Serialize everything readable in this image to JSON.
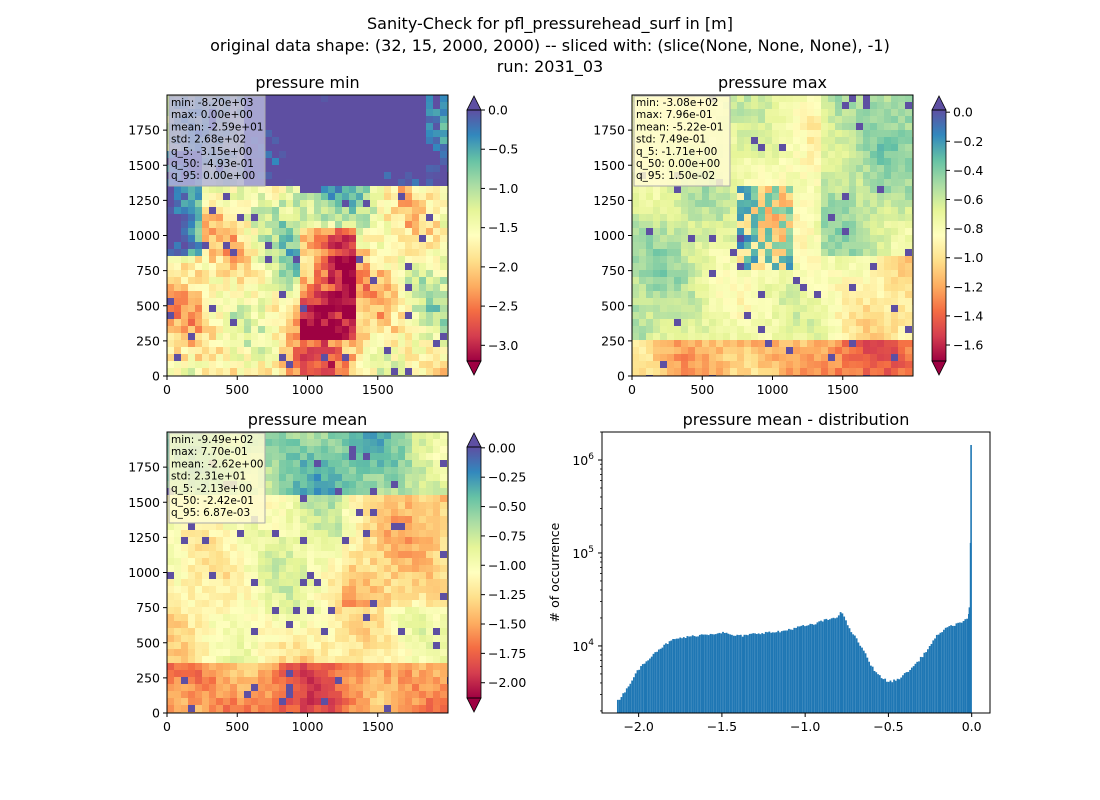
{
  "title_lines": [
    "Sanity-Check for pfl_pressurehead_surf in [m]",
    "original data shape: (32, 15, 2000, 2000) -- sliced with: (slice(None, None, None), -1)",
    "run: 2031_03"
  ],
  "colormap": "Spectral",
  "colormap_stops": [
    "#9e0142",
    "#d53e4f",
    "#f46d43",
    "#fdae61",
    "#fee08b",
    "#ffffbf",
    "#e6f598",
    "#abdda4",
    "#66c2a5",
    "#3288bd",
    "#5e4fa2"
  ],
  "hist_color": "#1f77b4",
  "chart_data": [
    {
      "type": "heatmap",
      "title": "pressure min",
      "x_ticks": [
        "0",
        "500",
        "1000",
        "1500"
      ],
      "y_ticks": [
        "0",
        "250",
        "500",
        "750",
        "1000",
        "1250",
        "1500",
        "1750"
      ],
      "xlim": [
        0,
        2000
      ],
      "ylim": [
        0,
        2000
      ],
      "colorbar": {
        "range": [
          -3.2,
          0.0
        ],
        "ticks": [
          "0.0",
          "−0.5",
          "−1.0",
          "−1.5",
          "−2.0",
          "−2.5",
          "−3.0"
        ],
        "tick_values": [
          0.0,
          -0.5,
          -1.0,
          -1.5,
          -2.0,
          -2.5,
          -3.0
        ],
        "extend": "both"
      },
      "stats": [
        "min: -8.20e+03",
        "max: 0.00e+00",
        "mean: -2.59e+01",
        "std: 2.68e+02",
        "q_5: -3.15e+00",
        "q_50: -4.93e-01",
        "q_95: 0.00e+00"
      ],
      "stats_box_color": "#b3b3d9",
      "stats_location": "top-left"
    },
    {
      "type": "heatmap",
      "title": "pressure max",
      "x_ticks": [
        "0",
        "500",
        "1000",
        "1500"
      ],
      "y_ticks": [
        "0",
        "250",
        "500",
        "750",
        "1000",
        "1250",
        "1500",
        "1750"
      ],
      "xlim": [
        0,
        2000
      ],
      "ylim": [
        0,
        2000
      ],
      "colorbar": {
        "range": [
          -1.71,
          0.015
        ],
        "ticks": [
          "0.0",
          "−0.2",
          "−0.4",
          "−0.6",
          "−0.8",
          "−1.0",
          "−1.2",
          "−1.4",
          "−1.6"
        ],
        "tick_values": [
          0.0,
          -0.2,
          -0.4,
          -0.6,
          -0.8,
          -1.0,
          -1.2,
          -1.4,
          -1.6
        ],
        "extend": "both"
      },
      "stats": [
        "min: -3.08e+02",
        "max: 7.96e-01",
        "mean: -5.22e-01",
        "std: 7.49e-01",
        "q_5: -1.71e+00",
        "q_50: 0.00e+00",
        "q_95: 1.50e-02"
      ],
      "stats_box_color": "#fffbd0",
      "stats_location": "top-left"
    },
    {
      "type": "heatmap",
      "title": "pressure mean",
      "x_ticks": [
        "0",
        "500",
        "1000",
        "1500"
      ],
      "y_ticks": [
        "0",
        "250",
        "500",
        "750",
        "1000",
        "1250",
        "1500",
        "1750"
      ],
      "xlim": [
        0,
        2000
      ],
      "ylim": [
        0,
        2000
      ],
      "colorbar": {
        "range": [
          -2.13,
          0.007
        ],
        "ticks": [
          "0.00",
          "−0.25",
          "−0.50",
          "−0.75",
          "−1.00",
          "−1.25",
          "−1.50",
          "−1.75",
          "−2.00"
        ],
        "tick_values": [
          0.0,
          -0.25,
          -0.5,
          -0.75,
          -1.0,
          -1.25,
          -1.5,
          -1.75,
          -2.0
        ],
        "extend": "both"
      },
      "stats": [
        "min: -9.49e+02",
        "max: 7.70e-01",
        "mean: -2.62e+00",
        "std: 2.31e+01",
        "q_5: -2.13e+00",
        "q_50: -2.42e-01",
        "q_95: 6.87e-03"
      ],
      "stats_box_color": "#fffbd0",
      "stats_location": "top-left"
    },
    {
      "type": "bar",
      "title": "pressure mean - distribution",
      "ylabel": "# of occurrence",
      "yscale": "log",
      "xlim": [
        -2.22,
        0.11
      ],
      "ylim": [
        1900,
        2000000
      ],
      "x_ticks": [
        "−2.0",
        "−1.5",
        "−1.0",
        "−0.5",
        "0.0"
      ],
      "x_tick_values": [
        -2.0,
        -1.5,
        -1.0,
        -0.5,
        0.0
      ],
      "y_ticks": [
        {
          "value": 10000,
          "base": "10",
          "exp": "4"
        },
        {
          "value": 100000,
          "base": "10",
          "exp": "5"
        },
        {
          "value": 1000000,
          "base": "10",
          "exp": "6"
        }
      ],
      "bin_width": 0.0107,
      "bins_x": [
        -2.13,
        -2.1,
        -2.05,
        -2.0,
        -1.95,
        -1.9,
        -1.85,
        -1.8,
        -1.75,
        -1.7,
        -1.65,
        -1.6,
        -1.55,
        -1.5,
        -1.45,
        -1.4,
        -1.35,
        -1.3,
        -1.25,
        -1.2,
        -1.15,
        -1.1,
        -1.05,
        -1.0,
        -0.95,
        -0.9,
        -0.85,
        -0.8,
        -0.78,
        -0.76,
        -0.74,
        -0.72,
        -0.7,
        -0.65,
        -0.6,
        -0.55,
        -0.5,
        -0.45,
        -0.4,
        -0.35,
        -0.3,
        -0.25,
        -0.2,
        -0.15,
        -0.1,
        -0.05,
        -0.02,
        -0.01,
        0.0
      ],
      "counts": [
        2500,
        2900,
        4000,
        5600,
        7000,
        8600,
        10000,
        11500,
        12200,
        12500,
        13000,
        13300,
        13600,
        14000,
        13200,
        12800,
        13000,
        13600,
        13900,
        14000,
        14200,
        15000,
        15800,
        16500,
        17000,
        18500,
        19500,
        21000,
        23500,
        19000,
        16500,
        14000,
        12500,
        9000,
        6000,
        4700,
        4100,
        4300,
        5000,
        6000,
        7600,
        10000,
        13500,
        15500,
        17000,
        18500,
        19500,
        26000,
        1450000
      ]
    }
  ]
}
